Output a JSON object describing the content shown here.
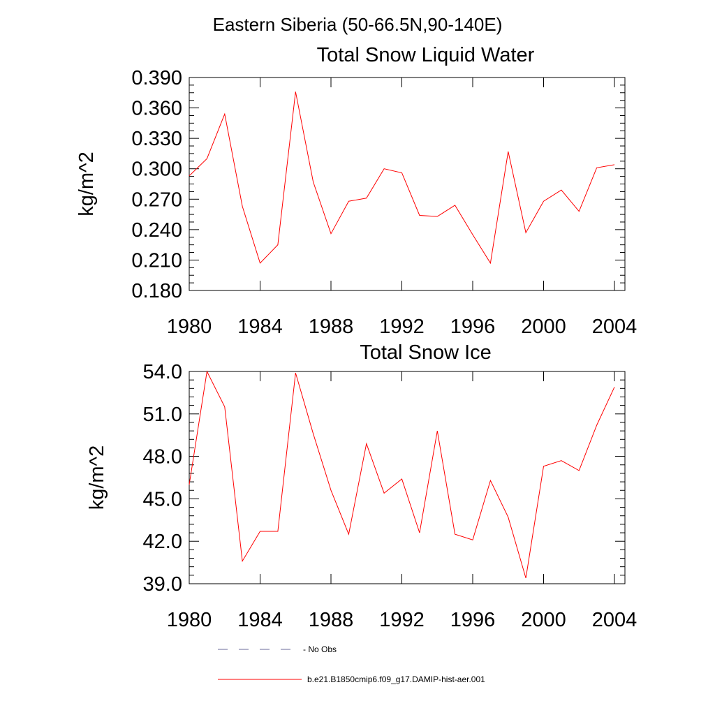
{
  "figure_title": "Eastern Siberia (50-66.5N,90-140E)",
  "legend": [
    {
      "label": "- No Obs",
      "color": "#6a6a9a",
      "style": "dashed"
    },
    {
      "label": "b.e21.B1850cmip6.f09_g17.DAMIP-hist-aer.001",
      "color": "#ff0000",
      "style": "solid"
    }
  ],
  "chart_data": [
    {
      "type": "line",
      "title": "Total Snow Liquid Water",
      "xlabel": "",
      "ylabel": "kg/m^2",
      "xlim": [
        1980,
        2004
      ],
      "ylim": [
        0.18,
        0.39
      ],
      "xticks": [
        "1980",
        "1984",
        "1988",
        "1992",
        "1996",
        "2000",
        "2004"
      ],
      "yticks": [
        "0.180",
        "0.210",
        "0.240",
        "0.270",
        "0.300",
        "0.330",
        "0.360",
        "0.390"
      ],
      "grid": false,
      "x": [
        1980,
        1981,
        1982,
        1983,
        1984,
        1985,
        1986,
        1987,
        1988,
        1989,
        1990,
        1991,
        1992,
        1993,
        1994,
        1995,
        1996,
        1997,
        1998,
        1999,
        2000,
        2001,
        2002,
        2003,
        2004
      ],
      "series": [
        {
          "color": "#ff0000",
          "values": [
            0.293,
            0.31,
            0.354,
            0.263,
            0.207,
            0.225,
            0.376,
            0.287,
            0.236,
            0.268,
            0.271,
            0.3,
            0.296,
            0.254,
            0.253,
            0.264,
            0.235,
            0.207,
            0.317,
            0.237,
            0.268,
            0.279,
            0.258,
            0.301,
            0.304
          ]
        }
      ]
    },
    {
      "type": "line",
      "title": "Total Snow Ice",
      "xlabel": "",
      "ylabel": "kg/m^2",
      "xlim": [
        1980,
        2004
      ],
      "ylim": [
        39.0,
        54.0
      ],
      "xticks": [
        "1980",
        "1984",
        "1988",
        "1992",
        "1996",
        "2000",
        "2004"
      ],
      "yticks": [
        "39.0",
        "42.0",
        "45.0",
        "48.0",
        "51.0",
        "54.0"
      ],
      "grid": false,
      "x": [
        1980,
        1981,
        1982,
        1983,
        1984,
        1985,
        1986,
        1987,
        1988,
        1989,
        1990,
        1991,
        1992,
        1993,
        1994,
        1995,
        1996,
        1997,
        1998,
        1999,
        2000,
        2001,
        2002,
        2003,
        2004
      ],
      "series": [
        {
          "color": "#ff0000",
          "values": [
            46.0,
            54.0,
            51.5,
            40.6,
            42.7,
            42.7,
            53.9,
            49.6,
            45.6,
            42.5,
            48.9,
            45.4,
            46.4,
            42.6,
            49.8,
            42.5,
            42.1,
            46.3,
            43.7,
            39.4,
            47.3,
            47.7,
            47.0,
            50.2,
            52.9
          ]
        }
      ]
    }
  ]
}
